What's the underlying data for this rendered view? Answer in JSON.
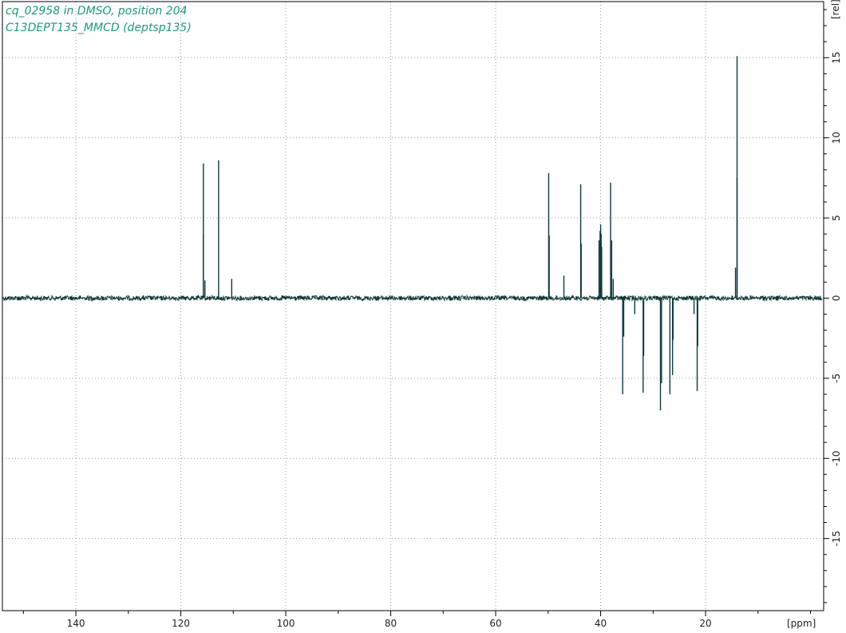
{
  "header": {
    "title_line1": "cq_02958 in DMSO, position 204",
    "title_line2": "C13DEPT135_MMCD (deptsp135)"
  },
  "colors": {
    "spectrum": "#0d3a3a",
    "title": "#1a9a7c",
    "grid": "#9a9a9a",
    "axis": "#000000"
  },
  "chart_data": {
    "type": "line",
    "title": "cq_02958 in DMSO, position 204",
    "subtitle": "C13DEPT135_MMCD (deptsp135)",
    "xlabel": "[ppm]",
    "ylabel": "[rel]",
    "xlim": [
      154,
      -2.5
    ],
    "ylim": [
      -19.5,
      18.5
    ],
    "x_reversed": true,
    "grid": true,
    "xticks": [
      140,
      120,
      100,
      80,
      60,
      40,
      20
    ],
    "xtick_labels": [
      "140",
      "120",
      "100",
      "80",
      "60",
      "40",
      "20"
    ],
    "yticks": [
      15,
      10,
      5,
      0,
      -5,
      -10,
      -15
    ],
    "ytick_labels": [
      "15",
      "10",
      "5",
      "0",
      "-5",
      "-10",
      "-15"
    ],
    "baseline": 0,
    "series": [
      {
        "peaks_ppm": [
          115.7,
          115.7,
          115.4,
          112.8,
          110.3,
          49.9,
          49.8,
          47.0,
          43.8,
          43.7,
          40.3,
          40.1,
          40.0,
          39.9,
          39.8,
          38.1,
          37.9,
          37.6,
          35.8,
          35.6,
          33.5,
          31.9,
          31.8,
          28.6,
          28.4,
          26.8,
          26.3,
          26.2,
          22.2,
          21.6,
          21.5,
          14.3,
          14.0,
          14.0
        ],
        "peaks_intensity": [
          8.4,
          4.0,
          1.1,
          8.6,
          1.2,
          7.8,
          3.9,
          1.4,
          7.1,
          3.4,
          3.6,
          4.2,
          4.6,
          4.0,
          3.2,
          7.2,
          3.6,
          1.2,
          -6.0,
          -2.4,
          -1.0,
          -5.9,
          -3.6,
          -7.0,
          -5.3,
          -6.0,
          -4.8,
          -2.6,
          -1.0,
          -5.8,
          -3.0,
          1.9,
          15.1,
          7.5
        ]
      }
    ]
  }
}
